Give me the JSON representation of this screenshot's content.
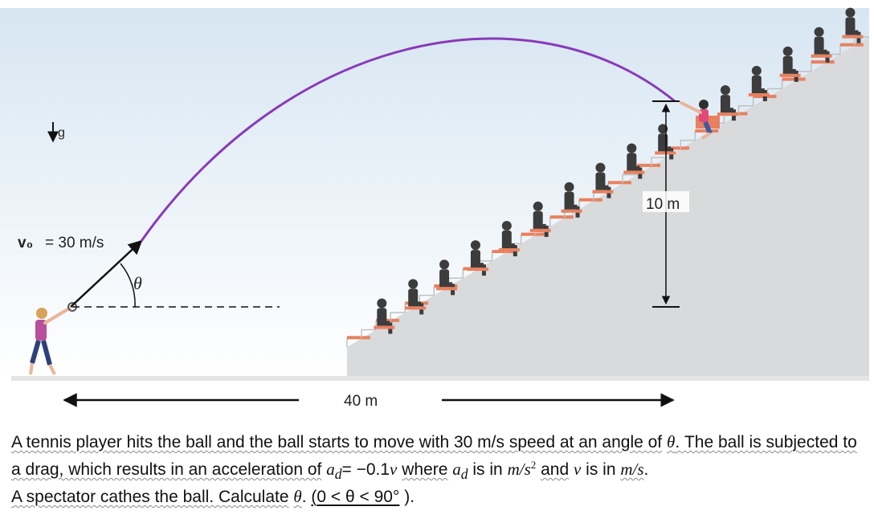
{
  "figure": {
    "gravity_label": "g",
    "velocity_label": "v₀",
    "velocity_value": "= 30 m/s",
    "angle_label": "θ",
    "height_label": "10 m",
    "distance_label": "40 m",
    "colors": {
      "sky_top": "#d7e6f2",
      "sky_bottom": "#ffffff",
      "trajectory": "#8a3ab9",
      "stands": "#d9dadb",
      "stands_edge": "#bfc0c2",
      "seat": "#e7815f",
      "spectator": "#3c3c3c",
      "ground": "#e4e4e4"
    }
  },
  "problem": {
    "p1": "A tennis player hits the ball and the ball starts to move with 30 m/s speed at an angle of",
    "theta": "θ",
    "p2": ". The ball is subjected to a drag, which results in an acceleration of",
    "ad": "a",
    "ad_sub": "d",
    "p3": "= −0.1",
    "v": "v",
    "p4": "where",
    "ad2": "a",
    "ad2_sub": "d",
    "p5": "is in",
    "unit_acc": "m/s",
    "unit_acc_sup": "2",
    "p6": "and",
    "v2": "v",
    "p7": "is in",
    "unit_vel": "m/s",
    "p8": ".",
    "p9": "A spectator cathes the ball. Calculate",
    "theta2": "θ",
    "p10": ".",
    "range_open": "(",
    "range_mid": "0 < θ < 90°",
    "range_close": ")."
  }
}
